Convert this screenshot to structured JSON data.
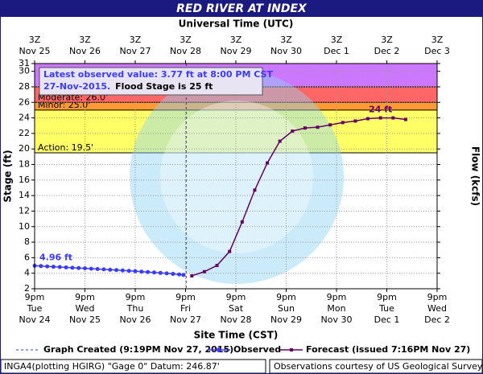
{
  "chart_data": {
    "type": "line",
    "title": "RED RIVER AT INDEX",
    "x2_title": "Universal Time (UTC)",
    "x_title": "Site Time (CST)",
    "y_title": "Stage (ft)",
    "y2_title": "Flow (kcfs)",
    "xlim": [
      "2015-11-24T21:00",
      "2015-12-02T21:00"
    ],
    "ylim": [
      2,
      31
    ],
    "yticks": [
      2,
      4,
      6,
      8,
      10,
      12,
      14,
      16,
      18,
      20,
      22,
      24,
      26,
      28,
      30,
      31
    ],
    "grid": true,
    "xticks": [
      {
        "value": "2015-11-24T21:00",
        "label": [
          "9pm",
          "Tue",
          "Nov 24"
        ]
      },
      {
        "value": "2015-11-25T21:00",
        "label": [
          "9pm",
          "Wed",
          "Nov 25"
        ]
      },
      {
        "value": "2015-11-26T21:00",
        "label": [
          "9pm",
          "Thu",
          "Nov 26"
        ]
      },
      {
        "value": "2015-11-27T21:00",
        "label": [
          "9pm",
          "Fri",
          "Nov 27"
        ]
      },
      {
        "value": "2015-11-28T21:00",
        "label": [
          "9pm",
          "Sat",
          "Nov 28"
        ]
      },
      {
        "value": "2015-11-29T21:00",
        "label": [
          "9pm",
          "Sun",
          "Nov 29"
        ]
      },
      {
        "value": "2015-11-30T21:00",
        "label": [
          "9pm",
          "Mon",
          "Nov 30"
        ]
      },
      {
        "value": "2015-12-01T21:00",
        "label": [
          "9pm",
          "Tue",
          "Dec 1"
        ]
      },
      {
        "value": "2015-12-02T21:00",
        "label": [
          "9pm",
          "Wed",
          "Dec 2"
        ]
      }
    ],
    "x2ticks": [
      {
        "value": "2015-11-24T21:00",
        "label": [
          "3Z",
          "Nov 25"
        ]
      },
      {
        "value": "2015-11-25T21:00",
        "label": [
          "3Z",
          "Nov 26"
        ]
      },
      {
        "value": "2015-11-26T21:00",
        "label": [
          "3Z",
          "Nov 27"
        ]
      },
      {
        "value": "2015-11-27T21:00",
        "label": [
          "3Z",
          "Nov 28"
        ]
      },
      {
        "value": "2015-11-28T21:00",
        "label": [
          "3Z",
          "Nov 29"
        ]
      },
      {
        "value": "2015-11-29T21:00",
        "label": [
          "3Z",
          "Nov 30"
        ]
      },
      {
        "value": "2015-11-30T21:00",
        "label": [
          "3Z",
          "Dec 1"
        ]
      },
      {
        "value": "2015-12-01T21:00",
        "label": [
          "3Z",
          "Dec 2"
        ]
      },
      {
        "value": "2015-12-02T21:00",
        "label": [
          "3Z",
          "Dec 3"
        ]
      }
    ],
    "flood_levels": [
      {
        "value": 19.5,
        "label": "Action: 19.5'",
        "color": "#ffff66"
      },
      {
        "value": 25,
        "label": "Minor: 25.0'",
        "color": "#ff9933"
      },
      {
        "value": 26,
        "label": "Moderate: 26.0'",
        "color": "#ff6666"
      },
      {
        "value": 28,
        "color": "#cc77ff"
      }
    ],
    "created": {
      "x": "2015-11-27T21:19",
      "label": "Graph Created (9:19PM Nov 27, 2015)"
    },
    "annotation": [
      "Latest observed value: 3.77 ft at 8:00 PM CST",
      "27-Nov-2015.",
      "Flood Stage is 25 ft"
    ],
    "series": [
      {
        "name": "Observed",
        "color": "#3b3bff",
        "marker": "circle",
        "x": [
          "2015-11-24T21:00",
          "2015-11-25T00:00",
          "2015-11-25T03:00",
          "2015-11-25T06:00",
          "2015-11-25T09:00",
          "2015-11-25T12:00",
          "2015-11-25T15:00",
          "2015-11-25T18:00",
          "2015-11-25T21:00",
          "2015-11-26T00:00",
          "2015-11-26T03:00",
          "2015-11-26T06:00",
          "2015-11-26T09:00",
          "2015-11-26T12:00",
          "2015-11-26T15:00",
          "2015-11-26T18:00",
          "2015-11-26T21:00",
          "2015-11-27T00:00",
          "2015-11-27T03:00",
          "2015-11-27T06:00",
          "2015-11-27T09:00",
          "2015-11-27T12:00",
          "2015-11-27T15:00",
          "2015-11-27T18:00",
          "2015-11-27T20:00"
        ],
        "values": [
          4.96,
          4.92,
          4.87,
          4.83,
          4.79,
          4.75,
          4.71,
          4.67,
          4.63,
          4.58,
          4.54,
          4.5,
          4.45,
          4.41,
          4.36,
          4.31,
          4.26,
          4.2,
          4.15,
          4.1,
          4.04,
          3.98,
          3.91,
          3.84,
          3.77
        ],
        "value_labels": [
          "4.96 ft",
          null,
          null,
          null,
          null,
          null,
          null,
          null,
          null,
          null,
          null,
          null,
          null,
          null,
          null,
          null,
          null,
          null,
          null,
          null,
          null,
          null,
          null,
          null,
          null
        ]
      },
      {
        "name": "Forecast (issued 7:16PM Nov 27)",
        "color": "#660066",
        "marker": "square",
        "x": [
          "2015-11-28T00:00",
          "2015-11-28T06:00",
          "2015-11-28T12:00",
          "2015-11-28T18:00",
          "2015-11-29T00:00",
          "2015-11-29T06:00",
          "2015-11-29T12:00",
          "2015-11-29T18:00",
          "2015-11-30T00:00",
          "2015-11-30T06:00",
          "2015-11-30T12:00",
          "2015-11-30T18:00",
          "2015-12-01T00:00",
          "2015-12-01T06:00",
          "2015-12-01T12:00",
          "2015-12-01T18:00",
          "2015-12-02T00:00",
          "2015-12-02T06:00"
        ],
        "values": [
          3.66,
          4.2,
          5.0,
          6.8,
          10.6,
          14.7,
          18.2,
          21.0,
          22.3,
          22.7,
          22.8,
          23.1,
          23.4,
          23.6,
          23.9,
          24.0,
          24.0,
          23.8
        ],
        "value_labels": [
          null,
          null,
          null,
          null,
          null,
          null,
          null,
          null,
          null,
          null,
          null,
          null,
          null,
          null,
          null,
          "24 ft",
          null,
          null
        ]
      }
    ],
    "footer": [
      "INGA4(plotting HGIRG) \"Gage 0\" Datum: 246.87'",
      "Observations courtesy of US Geological Survey"
    ]
  }
}
